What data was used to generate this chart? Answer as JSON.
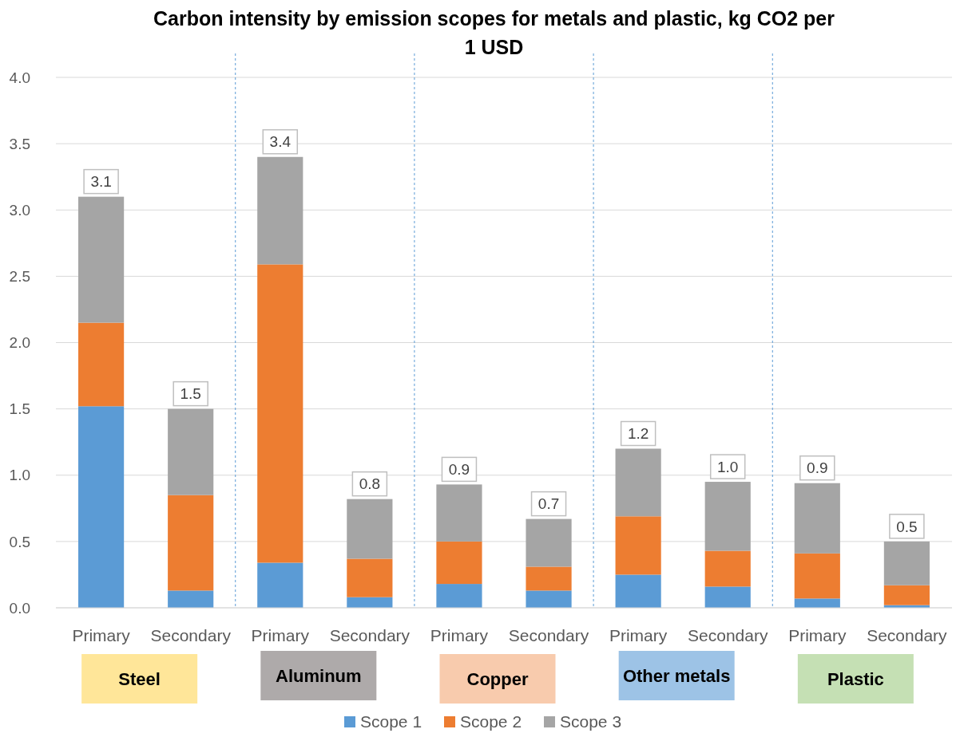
{
  "chart_data": {
    "type": "bar",
    "title": "Carbon intensity by emission scopes for metals and plastic, kg CO2 per 1 USD",
    "categories": [
      "Primary",
      "Secondary",
      "Primary",
      "Secondary",
      "Primary",
      "Secondary",
      "Primary",
      "Secondary",
      "Primary",
      "Secondary"
    ],
    "series": [
      {
        "name": "Scope 1",
        "color": "#5b9bd5",
        "values": [
          1.52,
          0.13,
          0.34,
          0.08,
          0.18,
          0.13,
          0.25,
          0.16,
          0.07,
          0.02
        ]
      },
      {
        "name": "Scope 2",
        "color": "#ed7d31",
        "values": [
          0.63,
          0.72,
          2.25,
          0.29,
          0.32,
          0.18,
          0.44,
          0.27,
          0.34,
          0.15
        ]
      },
      {
        "name": "Scope 3",
        "color": "#a5a5a5",
        "values": [
          0.95,
          0.65,
          0.81,
          0.45,
          0.43,
          0.36,
          0.51,
          0.52,
          0.53,
          0.33
        ]
      }
    ],
    "stacked": true,
    "totals": [
      "3.1",
      "1.5",
      "3.4",
      "0.8",
      "0.9",
      "0.7",
      "1.2",
      "1.0",
      "0.9",
      "0.5"
    ],
    "annotations": [
      "Steel",
      "Aluminum",
      "Copper",
      "Other metals",
      "Plastic"
    ],
    "ylim": [
      0,
      4
    ],
    "yticks": [
      {
        "value": 0,
        "label": "0.0"
      },
      {
        "value": 0.5,
        "label": "0.5"
      },
      {
        "value": 1,
        "label": "1.0"
      },
      {
        "value": 1.5,
        "label": "1.5"
      },
      {
        "value": 2,
        "label": "2.0"
      },
      {
        "value": 2.5,
        "label": "2.5"
      },
      {
        "value": 3,
        "label": "3.0"
      },
      {
        "value": 3.5,
        "label": "3.5"
      },
      {
        "value": 4,
        "label": "4.0"
      }
    ],
    "grid": "y",
    "legend": "bottom"
  }
}
